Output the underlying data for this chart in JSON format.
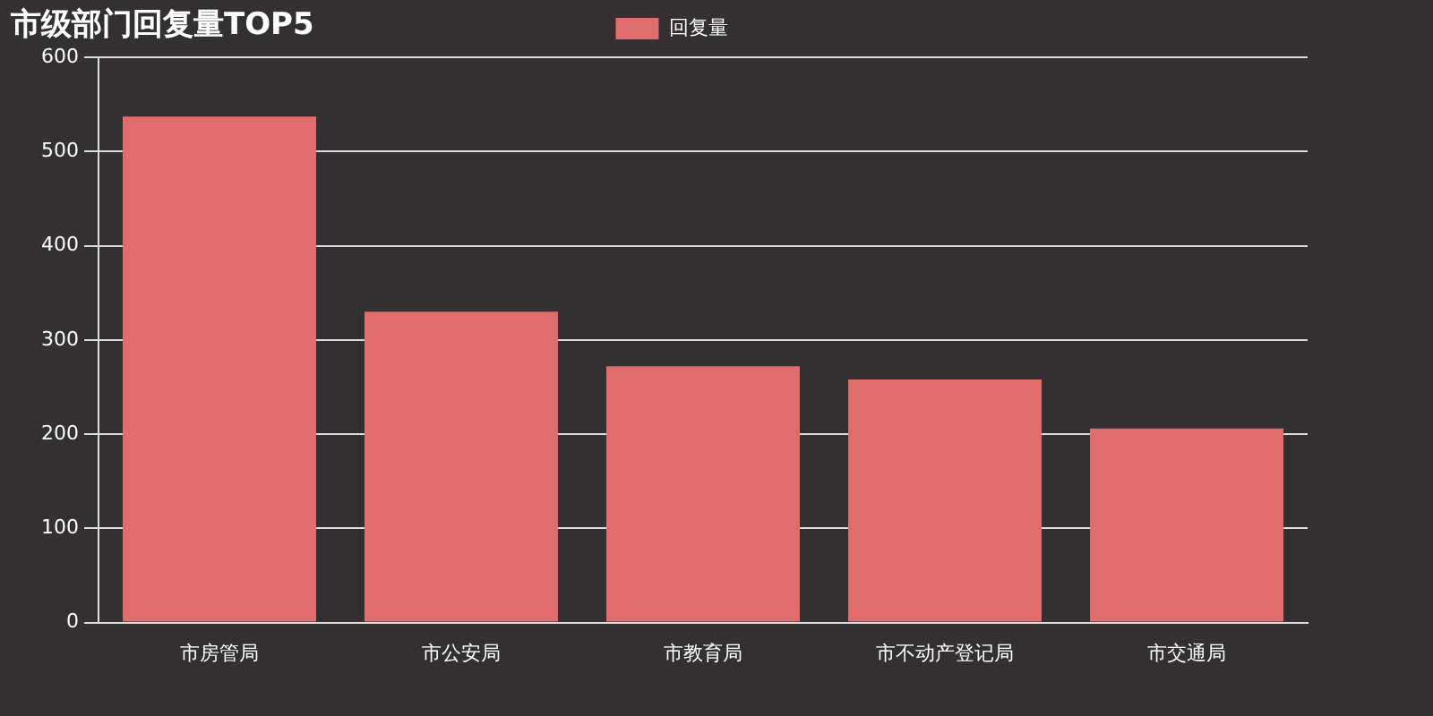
{
  "chart_data": {
    "type": "bar",
    "title": "市级部门回复量TOP5",
    "categories": [
      "市房管局",
      "市公安局",
      "市教育局",
      "市不动产登记局",
      "市交通局"
    ],
    "series": [
      {
        "name": "回复量",
        "color": "#e06c6c",
        "values": [
          537,
          330,
          272,
          258,
          206
        ]
      }
    ],
    "ylim": [
      0,
      600
    ],
    "yticks": [
      0,
      100,
      200,
      300,
      400,
      500,
      600
    ],
    "grid": "y",
    "legend": "top"
  }
}
